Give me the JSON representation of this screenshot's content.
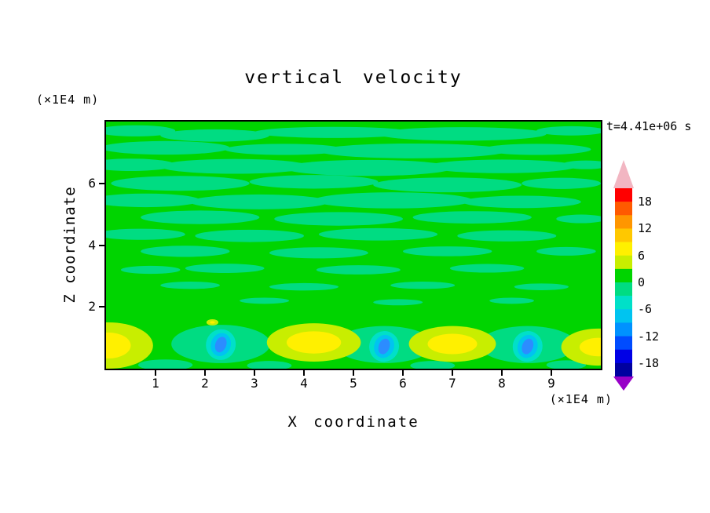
{
  "figure": {
    "background": "#FFFFFF"
  },
  "chart_data": {
    "type": "heatmap",
    "subtype": "filled-contour",
    "title": "vertical velocity",
    "time_annotation": "t=4.41e+06 s",
    "xlabel": "X coordinate",
    "ylabel": "Z coordinate",
    "x_axis_unit": "(×1E4 m)",
    "y_axis_unit": "(×1E4 m)",
    "xlim": [
      0,
      10
    ],
    "ylim": [
      0,
      8
    ],
    "x_ticks": [
      1,
      2,
      3,
      4,
      5,
      6,
      7,
      8,
      9
    ],
    "y_ticks": [
      2,
      4,
      6
    ],
    "grid": false,
    "colorbar": {
      "position": "right",
      "tick_labels": [
        "18",
        "12",
        "6",
        "0",
        "-6",
        "-12",
        "-18"
      ],
      "level_step": 3,
      "levels": [
        21,
        18,
        15,
        12,
        9,
        6,
        3,
        0,
        -3,
        -6,
        -9,
        -12,
        -15,
        -18,
        -21
      ],
      "segment_colors_top_to_bottom": [
        "#FF0000",
        "#FF5A00",
        "#FF9600",
        "#FFC800",
        "#FFF000",
        "#C8EE00",
        "#00D400",
        "#00DC82",
        "#00E0C8",
        "#00C4F0",
        "#0092FF",
        "#004CFF",
        "#0000E6",
        "#0000A0"
      ],
      "over_arrow_color": "#F2B6C2",
      "under_arrow_color": "#9800C8"
    },
    "field": {
      "background_color": "#00D400",
      "patch_color": "#00DC82",
      "updraft_outer_color": "#C8EE00",
      "updraft_core_color": "#FFF000",
      "downdraft_layers": [
        {
          "rx": 0.3,
          "ry": 0.5,
          "color": "#00E0C8"
        },
        {
          "rx": 0.2,
          "ry": 0.38,
          "color": "#00C4F0"
        },
        {
          "rx": 0.11,
          "ry": 0.26,
          "color": "#2C8CFF"
        }
      ],
      "streaks": [
        [
          0.6,
          7.7,
          0.8,
          0.18
        ],
        [
          2.2,
          7.55,
          1.1,
          0.2
        ],
        [
          4.6,
          7.65,
          1.6,
          0.18
        ],
        [
          7.2,
          7.6,
          1.7,
          0.22
        ],
        [
          9.4,
          7.7,
          0.7,
          0.15
        ],
        [
          1.2,
          7.15,
          1.3,
          0.22
        ],
        [
          3.6,
          7.1,
          1.2,
          0.18
        ],
        [
          6.2,
          7.05,
          1.9,
          0.24
        ],
        [
          8.7,
          7.1,
          1.1,
          0.18
        ],
        [
          0.5,
          6.6,
          0.9,
          0.2
        ],
        [
          2.6,
          6.55,
          1.5,
          0.24
        ],
        [
          5.3,
          6.5,
          1.7,
          0.26
        ],
        [
          8.0,
          6.55,
          1.5,
          0.22
        ],
        [
          9.7,
          6.6,
          0.5,
          0.14
        ],
        [
          1.5,
          6.0,
          1.4,
          0.24
        ],
        [
          4.2,
          6.05,
          1.3,
          0.22
        ],
        [
          6.9,
          5.95,
          1.5,
          0.24
        ],
        [
          9.2,
          6.0,
          0.8,
          0.18
        ],
        [
          0.8,
          5.45,
          1.1,
          0.22
        ],
        [
          3.1,
          5.4,
          1.4,
          0.24
        ],
        [
          5.8,
          5.45,
          1.6,
          0.26
        ],
        [
          8.4,
          5.4,
          1.2,
          0.2
        ],
        [
          1.9,
          4.9,
          1.2,
          0.22
        ],
        [
          4.7,
          4.85,
          1.3,
          0.22
        ],
        [
          7.4,
          4.9,
          1.2,
          0.2
        ],
        [
          9.6,
          4.85,
          0.5,
          0.14
        ],
        [
          0.7,
          4.35,
          0.9,
          0.18
        ],
        [
          2.9,
          4.3,
          1.1,
          0.2
        ],
        [
          5.5,
          4.35,
          1.2,
          0.2
        ],
        [
          8.1,
          4.3,
          1.0,
          0.18
        ],
        [
          1.6,
          3.8,
          0.9,
          0.18
        ],
        [
          4.3,
          3.75,
          1.0,
          0.18
        ],
        [
          6.9,
          3.8,
          0.9,
          0.16
        ],
        [
          9.3,
          3.8,
          0.6,
          0.14
        ],
        [
          2.4,
          3.25,
          0.8,
          0.15
        ],
        [
          5.1,
          3.2,
          0.85,
          0.15
        ],
        [
          7.7,
          3.25,
          0.75,
          0.14
        ],
        [
          0.9,
          3.2,
          0.6,
          0.13
        ],
        [
          1.7,
          2.7,
          0.6,
          0.12
        ],
        [
          4.0,
          2.65,
          0.7,
          0.12
        ],
        [
          6.4,
          2.7,
          0.65,
          0.12
        ],
        [
          8.8,
          2.65,
          0.55,
          0.11
        ],
        [
          3.2,
          2.2,
          0.5,
          0.1
        ],
        [
          5.9,
          2.15,
          0.5,
          0.1
        ],
        [
          8.2,
          2.2,
          0.45,
          0.1
        ]
      ],
      "bottom_patches": [
        [
          2.32,
          0.8,
          1.0,
          0.62
        ],
        [
          5.62,
          0.78,
          1.0,
          0.6
        ],
        [
          8.52,
          0.78,
          0.98,
          0.6
        ],
        [
          1.2,
          0.12,
          0.55,
          0.18
        ],
        [
          3.3,
          0.1,
          0.45,
          0.15
        ],
        [
          6.6,
          0.1,
          0.45,
          0.15
        ],
        [
          9.3,
          0.12,
          0.4,
          0.15
        ]
      ],
      "updrafts": [
        {
          "x": 0.05,
          "z": 0.75,
          "rx": 0.9,
          "ry": 0.75,
          "core_rx": 0.45,
          "core_ry": 0.42
        },
        {
          "x": 4.2,
          "z": 0.85,
          "rx": 0.95,
          "ry": 0.62,
          "core_rx": 0.55,
          "core_ry": 0.36
        },
        {
          "x": 7.0,
          "z": 0.8,
          "rx": 0.88,
          "ry": 0.58,
          "core_rx": 0.5,
          "core_ry": 0.33
        },
        {
          "x": 9.95,
          "z": 0.7,
          "rx": 0.75,
          "ry": 0.6,
          "core_rx": 0.38,
          "core_ry": 0.3
        },
        {
          "x": 2.15,
          "z": 1.5,
          "rx": 0.12,
          "ry": 0.1,
          "core_rx": 0.05,
          "core_ry": 0.04
        }
      ],
      "downdrafts": [
        {
          "x": 2.32,
          "z": 0.78,
          "tilt": 20
        },
        {
          "x": 5.62,
          "z": 0.72,
          "tilt": 20
        },
        {
          "x": 8.52,
          "z": 0.72,
          "tilt": 20
        }
      ]
    }
  }
}
